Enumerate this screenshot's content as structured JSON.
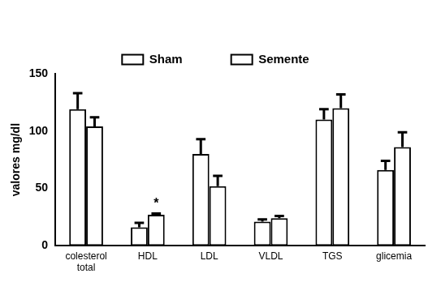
{
  "chart_data": {
    "type": "bar",
    "categories": [
      "colesterol total",
      "HDL",
      "LDL",
      "VLDL",
      "TGS",
      "glicemia"
    ],
    "series": [
      {
        "name": "Sham",
        "color": "#ffffff",
        "values": [
          119,
          16,
          80,
          21,
          110,
          66
        ],
        "errors": [
          14,
          4,
          13,
          2,
          9,
          8
        ]
      },
      {
        "name": "Semente",
        "color": "#ffffff",
        "values": [
          104,
          27,
          52,
          24,
          120,
          86
        ],
        "errors": [
          8,
          1,
          9,
          2,
          12,
          13
        ]
      }
    ],
    "y_label": "valores mg/dl",
    "ylim": [
      0,
      150
    ],
    "yticks": [
      0,
      50,
      100,
      150
    ],
    "grid": false,
    "legend": "top",
    "annotations": [
      {
        "text": "*",
        "category": "HDL",
        "series": "Semente"
      }
    ]
  }
}
